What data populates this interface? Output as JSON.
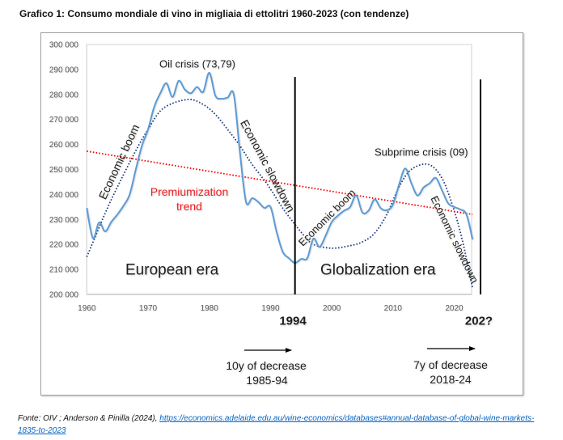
{
  "title": "Grafico 1: Consumo mondiale di vino in migliaia di ettolitri 1960-2023 (con tendenze)",
  "chart_data": {
    "type": "line",
    "title": "Grafico 1: Consumo mondiale di vino in migliaia di ettolitri 1960-2023 (con tendenze)",
    "xlabel": "",
    "ylabel": "",
    "xlim": [
      1960,
      2023
    ],
    "ylim": [
      200000,
      300000
    ],
    "grid": true,
    "legend": "none",
    "x_ticks": [
      1960,
      1970,
      1980,
      1990,
      2000,
      2010,
      2020
    ],
    "x_tick_labels": [
      "1960",
      "1970",
      "1980",
      "1990",
      "2000",
      "2010",
      "2020"
    ],
    "y_ticks": [
      200000,
      210000,
      220000,
      230000,
      240000,
      250000,
      260000,
      270000,
      280000,
      290000,
      300000
    ],
    "y_tick_labels": [
      "200 000",
      "210 000",
      "220 000",
      "230 000",
      "240 000",
      "250 000",
      "260 000",
      "270 000",
      "280 000",
      "290 000",
      "300 000"
    ],
    "x": [
      1960,
      1961,
      1962,
      1963,
      1964,
      1965,
      1966,
      1967,
      1968,
      1969,
      1970,
      1971,
      1972,
      1973,
      1974,
      1975,
      1976,
      1977,
      1978,
      1979,
      1980,
      1981,
      1982,
      1983,
      1984,
      1985,
      1986,
      1987,
      1988,
      1989,
      1990,
      1991,
      1992,
      1993,
      1994,
      1995,
      1996,
      1997,
      1998,
      1999,
      2000,
      2001,
      2002,
      2003,
      2004,
      2005,
      2006,
      2007,
      2008,
      2009,
      2010,
      2011,
      2012,
      2013,
      2014,
      2015,
      2016,
      2017,
      2018,
      2019,
      2020,
      2021,
      2022,
      2023
    ],
    "series": [
      {
        "name": "Consumo mondiale di vino",
        "color": "#5b9bd5",
        "values": [
          234600,
          222500,
          228800,
          225200,
          229000,
          232000,
          235500,
          240000,
          250000,
          259500,
          266000,
          275000,
          280500,
          284500,
          279000,
          285500,
          282000,
          280500,
          283000,
          281000,
          288700,
          279500,
          278300,
          278800,
          280000,
          257000,
          237000,
          238500,
          237000,
          234600,
          235000,
          225000,
          217000,
          214500,
          212600,
          214200,
          214500,
          222300,
          219000,
          223500,
          229000,
          231500,
          233500,
          235000,
          239600,
          232800,
          233500,
          238000,
          234500,
          233700,
          236000,
          244000,
          250400,
          244500,
          239600,
          242800,
          244500,
          246600,
          241700,
          236500,
          235000,
          234000,
          232000,
          222000
        ]
      }
    ],
    "trends": [
      {
        "name": "polynomial-trend",
        "color": "#1f3a7a",
        "style": "dotted",
        "points": [
          [
            1960,
            215000
          ],
          [
            1963,
            232500
          ],
          [
            1965,
            243000
          ],
          [
            1968,
            257500
          ],
          [
            1970,
            266000
          ],
          [
            1972.5,
            274500
          ],
          [
            1976.5,
            278000
          ],
          [
            1979,
            276000
          ],
          [
            1981,
            272000
          ],
          [
            1983,
            266000
          ],
          [
            1985,
            259500
          ],
          [
            1987,
            252000
          ],
          [
            1989.5,
            244000
          ],
          [
            1992,
            234500
          ],
          [
            1994,
            228000
          ],
          [
            1995.5,
            223500
          ],
          [
            1997,
            220000
          ],
          [
            2000,
            218500
          ],
          [
            2003,
            219500
          ],
          [
            2005,
            221000
          ],
          [
            2007,
            224500
          ],
          [
            2009,
            232000
          ],
          [
            2011,
            243000
          ],
          [
            2013,
            250000
          ],
          [
            2015.8,
            252000
          ],
          [
            2018,
            246500
          ],
          [
            2019.8,
            235000
          ],
          [
            2021.3,
            222000
          ],
          [
            2023,
            202500
          ]
        ]
      },
      {
        "name": "premiumization-trend",
        "color": "#ff0000",
        "style": "dotted",
        "points": [
          [
            1960,
            257300
          ],
          [
            2023,
            232000
          ]
        ]
      }
    ],
    "vertical_markers": [
      {
        "year": 1994,
        "top_value": 287000,
        "label": "1994"
      },
      {
        "year": 2024.3,
        "top_value": 286000,
        "label": "202?"
      }
    ],
    "annotations": {
      "oil_crisis": "Oil crisis (73,79)",
      "economic_boom_1": "Economic boom",
      "economic_slowdown_1": "Economic slowdown",
      "premiumization_line1": "Premiumization",
      "premiumization_line2": "trend",
      "economic_boom_2": "Economic boom",
      "subprime_crisis": "Subprime crisis (09)",
      "economic_slowdown_2": "Economic slowdown",
      "european_era": "European era",
      "globalization_era": "Globalization era",
      "marker_1994": "1994",
      "marker_202x": "202?",
      "decrease_1_line1": "10y of decrease",
      "decrease_1_line2": "1985-94",
      "decrease_2_line1": "7y of decrease",
      "decrease_2_line2": "2018-24"
    }
  },
  "footer": {
    "source_text": "Fonte: OIV ; Anderson & Pinilla (2024), ",
    "link_text": "https://economics.adelaide.edu.au/wine-economics/databases#annual-database-of-global-wine-markets-1835-to-2023",
    "link_color": "#0563c1"
  }
}
